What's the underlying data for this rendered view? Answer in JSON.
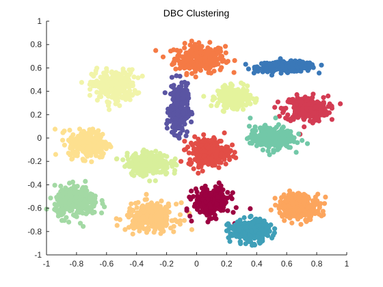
{
  "chart_data": {
    "type": "scatter",
    "title": "DBC Clustering",
    "xlabel": "",
    "ylabel": "",
    "xlim": [
      -1,
      1
    ],
    "ylim": [
      -1,
      1
    ],
    "xticks": [
      "-1",
      "-0.8",
      "-0.6",
      "-0.4",
      "-0.2",
      "0",
      "0.2",
      "0.4",
      "0.6",
      "0.8",
      "1"
    ],
    "yticks": [
      "1",
      "0.8",
      "0.6",
      "0.4",
      "0.2",
      "0",
      "-0.2",
      "-0.4",
      "-0.6",
      "-0.8",
      "-1"
    ],
    "grid": false,
    "legend": "none",
    "marker": "filled-circle",
    "clusters": [
      {
        "color": "#f57a45",
        "center": [
          0.02,
          0.68
        ],
        "spread": [
          0.14,
          0.1
        ]
      },
      {
        "color": "#3a78b8",
        "center": [
          0.6,
          0.61
        ],
        "spread": [
          0.16,
          0.035
        ]
      },
      {
        "color": "#d33c53",
        "center": [
          0.73,
          0.25
        ],
        "spread": [
          0.12,
          0.09
        ]
      },
      {
        "color": "#f1f4a9",
        "center": [
          -0.55,
          0.45
        ],
        "spread": [
          0.12,
          0.11
        ]
      },
      {
        "color": "#e4f39c",
        "center": [
          0.25,
          0.35
        ],
        "spread": [
          0.09,
          0.07
        ]
      },
      {
        "color": "#5a55a3",
        "center": [
          -0.12,
          0.25
        ],
        "spread": [
          0.05,
          0.18
        ]
      },
      {
        "color": "#fde08f",
        "center": [
          -0.72,
          -0.05
        ],
        "spread": [
          0.11,
          0.1
        ]
      },
      {
        "color": "#e24d46",
        "center": [
          0.08,
          -0.12
        ],
        "spread": [
          0.11,
          0.1
        ]
      },
      {
        "color": "#72c8a8",
        "center": [
          0.5,
          0.0
        ],
        "spread": [
          0.12,
          0.08
        ]
      },
      {
        "color": "#d8ef9b",
        "center": [
          -0.32,
          -0.22
        ],
        "spread": [
          0.12,
          0.08
        ]
      },
      {
        "color": "#a3d9a4",
        "center": [
          -0.8,
          -0.55
        ],
        "spread": [
          0.12,
          0.11
        ]
      },
      {
        "color": "#fec97d",
        "center": [
          -0.3,
          -0.68
        ],
        "spread": [
          0.14,
          0.1
        ]
      },
      {
        "color": "#9c0141",
        "center": [
          0.1,
          -0.55
        ],
        "spread": [
          0.1,
          0.1
        ]
      },
      {
        "color": "#3f9fb8",
        "center": [
          0.35,
          -0.8
        ],
        "spread": [
          0.11,
          0.08
        ]
      },
      {
        "color": "#fca55d",
        "center": [
          0.68,
          -0.58
        ],
        "spread": [
          0.12,
          0.09
        ]
      }
    ]
  }
}
